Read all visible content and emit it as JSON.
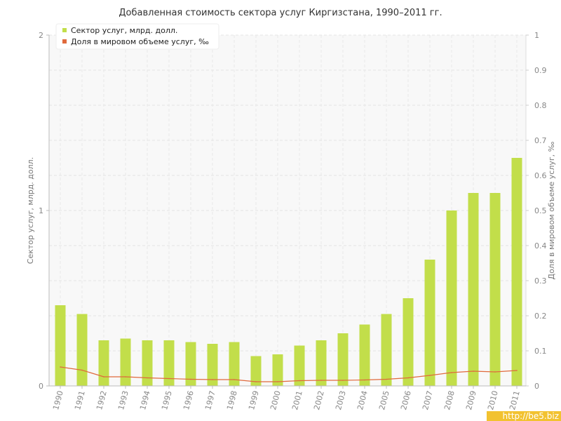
{
  "chart_data": {
    "type": "bar",
    "title": "Добавленная стоимость сектора услуг Киргизстана, 1990–2011 гг.",
    "categories": [
      "1990",
      "1991",
      "1992",
      "1993",
      "1994",
      "1995",
      "1996",
      "1997",
      "1998",
      "1999",
      "2000",
      "2001",
      "2002",
      "2003",
      "2004",
      "2005",
      "2006",
      "2007",
      "2008",
      "2009",
      "2010",
      "2011"
    ],
    "series": [
      {
        "name": "Сектор услуг, млрд. долл.",
        "type": "bar",
        "axis": "left",
        "color": "#c2de4a",
        "values": [
          0.46,
          0.41,
          0.26,
          0.27,
          0.26,
          0.26,
          0.25,
          0.24,
          0.25,
          0.17,
          0.18,
          0.23,
          0.26,
          0.3,
          0.35,
          0.41,
          0.5,
          0.72,
          1.0,
          1.1,
          1.1,
          1.3
        ]
      },
      {
        "name": "Доля в мировом объеме услуг, ‰",
        "type": "line",
        "axis": "right",
        "color": "#e06a3c",
        "values": [
          0.054,
          0.045,
          0.026,
          0.026,
          0.023,
          0.021,
          0.019,
          0.018,
          0.018,
          0.012,
          0.012,
          0.015,
          0.016,
          0.016,
          0.017,
          0.019,
          0.023,
          0.03,
          0.038,
          0.042,
          0.04,
          0.044
        ]
      }
    ],
    "ylabel_left": "Сектор услуг, млрд. долл.",
    "ylabel_right": "Доля в мировом объеме услуг, ‰",
    "ylim_left": [
      0,
      2
    ],
    "ylim_right": [
      0,
      1
    ],
    "yticks_left": [
      "0",
      "1",
      "2"
    ],
    "yticks_right": [
      "0",
      "0.1",
      "0.2",
      "0.3",
      "0.4",
      "0.5",
      "0.6",
      "0.7",
      "0.8",
      "0.9",
      "1"
    ],
    "grid": true,
    "legend_position": "top-left"
  },
  "watermark": {
    "text": "http://be5.biz",
    "background": "#f2c230"
  },
  "colors": {
    "plot_background": "#f8f8f8",
    "grid": "#e4e4e4"
  }
}
